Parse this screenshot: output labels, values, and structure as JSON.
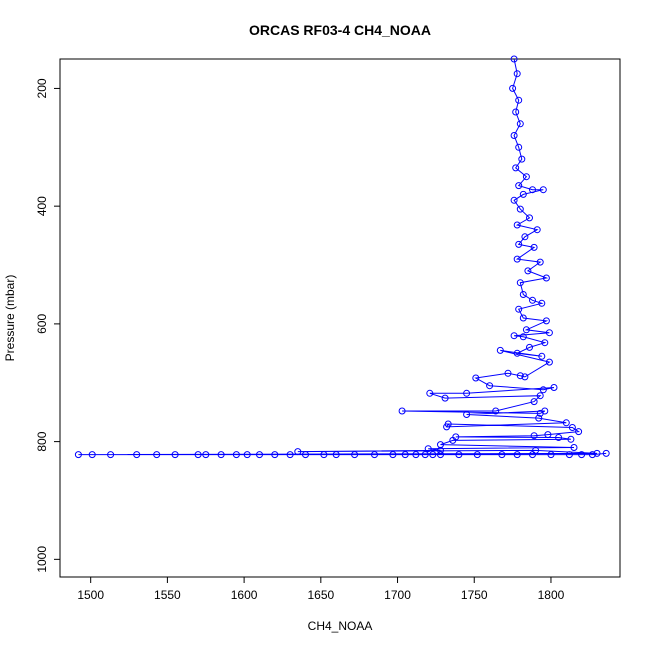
{
  "chart_data": {
    "type": "scatter",
    "title": "ORCAS RF03-4 CH4_NOAA",
    "xlabel": "CH4_NOAA",
    "ylabel": "Pressure (mbar)",
    "xlim": [
      1480,
      1845
    ],
    "ylim": [
      1030,
      150
    ],
    "y_reversed": true,
    "x_ticks": [
      1500,
      1550,
      1600,
      1650,
      1700,
      1750,
      1800
    ],
    "y_ticks": [
      200,
      400,
      600,
      800,
      1000
    ],
    "grid": false,
    "series": [
      {
        "color": "#0000ff",
        "marker": "open-circle",
        "points": [
          [
            1776,
            150
          ],
          [
            1778,
            175
          ],
          [
            1775,
            200
          ],
          [
            1779,
            220
          ],
          [
            1777,
            240
          ],
          [
            1780,
            260
          ],
          [
            1776,
            280
          ],
          [
            1779,
            300
          ],
          [
            1781,
            320
          ],
          [
            1777,
            335
          ],
          [
            1784,
            350
          ],
          [
            1779,
            365
          ],
          [
            1788,
            372
          ],
          [
            1795,
            372
          ],
          [
            1782,
            380
          ],
          [
            1776,
            390
          ],
          [
            1780,
            405
          ],
          [
            1786,
            420
          ],
          [
            1778,
            432
          ],
          [
            1791,
            440
          ],
          [
            1783,
            452
          ],
          [
            1779,
            465
          ],
          [
            1789,
            470
          ],
          [
            1778,
            490
          ],
          [
            1793,
            495
          ],
          [
            1785,
            510
          ],
          [
            1797,
            522
          ],
          [
            1780,
            530
          ],
          [
            1782,
            550
          ],
          [
            1788,
            560
          ],
          [
            1794,
            565
          ],
          [
            1779,
            575
          ],
          [
            1782,
            590
          ],
          [
            1797,
            595
          ],
          [
            1784,
            610
          ],
          [
            1799,
            615
          ],
          [
            1776,
            620
          ],
          [
            1782,
            622
          ],
          [
            1796,
            632
          ],
          [
            1786,
            640
          ],
          [
            1778,
            650
          ],
          [
            1794,
            655
          ],
          [
            1767,
            645
          ],
          [
            1799,
            665
          ],
          [
            1783,
            690
          ],
          [
            1780,
            688
          ],
          [
            1772,
            684
          ],
          [
            1751,
            692
          ],
          [
            1760,
            705
          ],
          [
            1795,
            712
          ],
          [
            1802,
            708
          ],
          [
            1745,
            718
          ],
          [
            1721,
            718
          ],
          [
            1731,
            726
          ],
          [
            1793,
            722
          ],
          [
            1789,
            732
          ],
          [
            1764,
            748
          ],
          [
            1703,
            748
          ],
          [
            1793,
            752
          ],
          [
            1796,
            748
          ],
          [
            1745,
            754
          ],
          [
            1792,
            760
          ],
          [
            1810,
            768
          ],
          [
            1732,
            775
          ],
          [
            1733,
            770
          ],
          [
            1814,
            776
          ],
          [
            1818,
            783
          ],
          [
            1798,
            788
          ],
          [
            1789,
            790
          ],
          [
            1738,
            792
          ],
          [
            1805,
            793
          ],
          [
            1813,
            796
          ],
          [
            1736,
            798
          ],
          [
            1728,
            805
          ],
          [
            1815,
            810
          ],
          [
            1720,
            812
          ],
          [
            1728,
            815
          ],
          [
            1635,
            817
          ],
          [
            1790,
            815
          ],
          [
            1830,
            820
          ],
          [
            1492,
            822
          ],
          [
            1501,
            822
          ],
          [
            1513,
            822
          ],
          [
            1530,
            822
          ],
          [
            1543,
            822
          ],
          [
            1555,
            822
          ],
          [
            1570,
            822
          ],
          [
            1575,
            822
          ],
          [
            1585,
            822
          ],
          [
            1595,
            822
          ],
          [
            1602,
            822
          ],
          [
            1610,
            822
          ],
          [
            1620,
            822
          ],
          [
            1630,
            822
          ],
          [
            1640,
            822
          ],
          [
            1652,
            822
          ],
          [
            1660,
            822
          ],
          [
            1672,
            822
          ],
          [
            1685,
            822
          ],
          [
            1697,
            822
          ],
          [
            1705,
            822
          ],
          [
            1712,
            822
          ],
          [
            1718,
            822
          ],
          [
            1723,
            822
          ],
          [
            1728,
            822
          ],
          [
            1740,
            822
          ],
          [
            1752,
            822
          ],
          [
            1768,
            822
          ],
          [
            1778,
            822
          ],
          [
            1788,
            822
          ],
          [
            1800,
            822
          ],
          [
            1812,
            822
          ],
          [
            1820,
            822
          ],
          [
            1827,
            822
          ],
          [
            1836,
            820
          ]
        ]
      }
    ]
  }
}
